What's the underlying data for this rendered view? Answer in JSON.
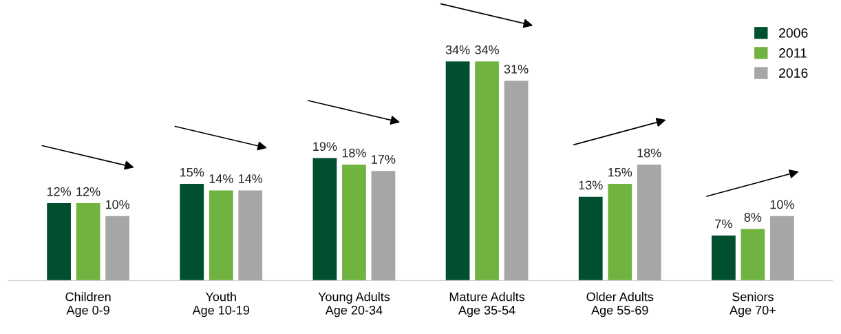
{
  "chart_data": {
    "type": "bar",
    "categories": [
      "Children\nAge 0-9",
      "Youth\nAge 10-19",
      "Young Adults\nAge 20-34",
      "Mature Adults\nAge 35-54",
      "Older Adults\nAge 55-69",
      "Seniors\nAge 70+"
    ],
    "series": [
      {
        "name": "2006",
        "color": "#00502f",
        "values": [
          12,
          15,
          19,
          34,
          13,
          7
        ],
        "value_labels": [
          "12%",
          "15%",
          "19%",
          "34%",
          "13%",
          "7%"
        ]
      },
      {
        "name": "2011",
        "color": "#70b340",
        "values": [
          12,
          14,
          18,
          34,
          15,
          8
        ],
        "value_labels": [
          "12%",
          "14%",
          "18%",
          "34%",
          "15%",
          "8%"
        ]
      },
      {
        "name": "2016",
        "color": "#a6a6a6",
        "values": [
          10,
          14,
          17,
          31,
          18,
          10
        ],
        "value_labels": [
          "10%",
          "14%",
          "17%",
          "31%",
          "18%",
          "10%"
        ]
      }
    ],
    "legend": "top right",
    "grid": false
  }
}
